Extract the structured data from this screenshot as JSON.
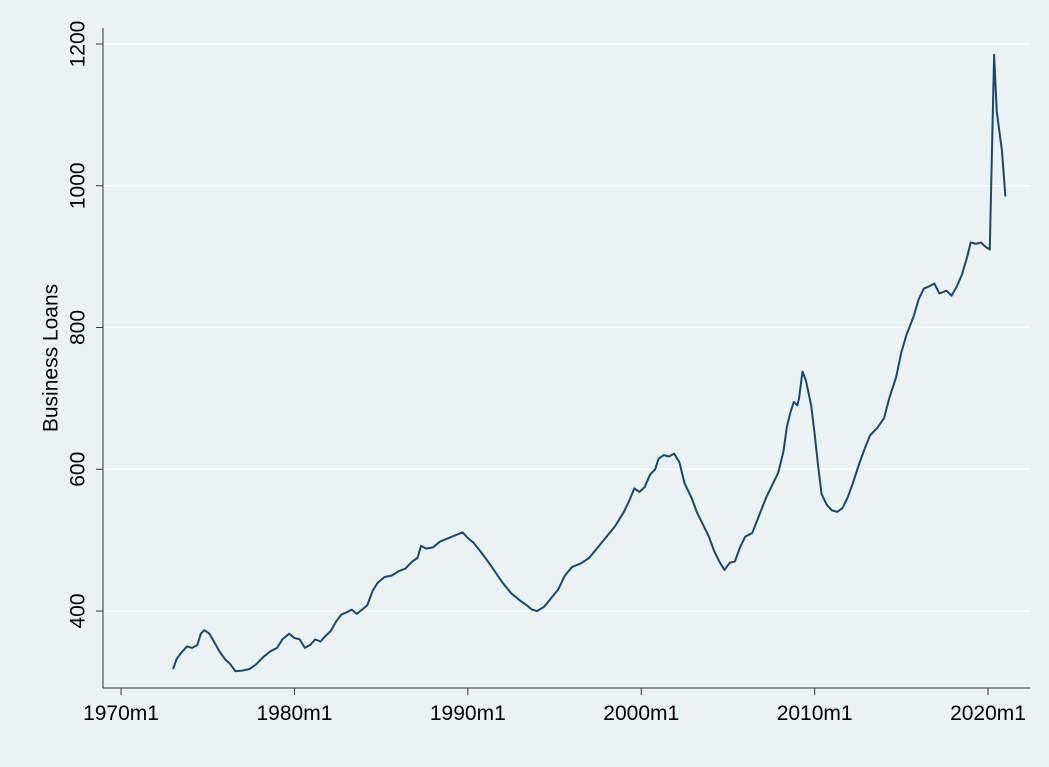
{
  "chart_data": {
    "type": "line",
    "ylabel": "Business Loans",
    "color": "#1a476f",
    "grid": true,
    "x": [
      1973.0,
      1973.2,
      1973.5,
      1973.8,
      1974.1,
      1974.4,
      1974.6,
      1974.8,
      1975.1,
      1975.4,
      1975.7,
      1976.0,
      1976.3,
      1976.6,
      1977.0,
      1977.4,
      1977.8,
      1978.2,
      1978.6,
      1979.0,
      1979.3,
      1979.7,
      1980.0,
      1980.3,
      1980.6,
      1980.9,
      1981.2,
      1981.5,
      1981.8,
      1982.1,
      1982.4,
      1982.7,
      1983.0,
      1983.3,
      1983.6,
      1983.9,
      1984.2,
      1984.5,
      1984.8,
      1985.2,
      1985.6,
      1986.0,
      1986.4,
      1986.8,
      1987.1,
      1987.3,
      1987.6,
      1988.0,
      1988.4,
      1988.8,
      1989.1,
      1989.4,
      1989.7,
      1990.0,
      1990.3,
      1990.7,
      1991.1,
      1991.5,
      1992.0,
      1992.5,
      1993.0,
      1993.4,
      1993.7,
      1994.0,
      1994.4,
      1994.8,
      1995.2,
      1995.6,
      1996.0,
      1996.5,
      1997.0,
      1997.5,
      1998.0,
      1998.5,
      1999.0,
      1999.3,
      1999.6,
      1999.9,
      2000.2,
      2000.5,
      2000.8,
      2001.0,
      2001.3,
      2001.6,
      2001.9,
      2002.2,
      2002.5,
      2002.9,
      2003.2,
      2003.6,
      2003.9,
      2004.2,
      2004.5,
      2004.8,
      2005.1,
      2005.4,
      2005.7,
      2006.0,
      2006.4,
      2006.8,
      2007.2,
      2007.6,
      2007.9,
      2008.2,
      2008.4,
      2008.6,
      2008.8,
      2009.0,
      2009.1,
      2009.3,
      2009.5,
      2009.8,
      2010.0,
      2010.2,
      2010.4,
      2010.7,
      2011.0,
      2011.3,
      2011.6,
      2011.9,
      2012.2,
      2012.6,
      2012.9,
      2013.2,
      2013.6,
      2014.0,
      2014.3,
      2014.7,
      2015.0,
      2015.3,
      2015.7,
      2016.0,
      2016.3,
      2016.6,
      2016.9,
      2017.2,
      2017.6,
      2017.9,
      2018.2,
      2018.5,
      2018.8,
      2019.0,
      2019.3,
      2019.6,
      2019.8,
      2020.1,
      2020.35,
      2020.5,
      2020.8,
      2021.0
    ],
    "values": [
      318,
      332,
      342,
      350,
      348,
      352,
      368,
      373,
      368,
      355,
      342,
      332,
      325,
      315,
      316,
      318,
      325,
      335,
      343,
      348,
      360,
      368,
      362,
      360,
      348,
      352,
      360,
      357,
      365,
      372,
      385,
      395,
      398,
      402,
      396,
      402,
      408,
      428,
      440,
      448,
      450,
      456,
      460,
      470,
      475,
      492,
      488,
      490,
      498,
      502,
      505,
      508,
      511,
      503,
      497,
      485,
      472,
      458,
      440,
      425,
      415,
      408,
      402,
      400,
      406,
      418,
      430,
      450,
      462,
      467,
      475,
      490,
      505,
      520,
      540,
      555,
      573,
      568,
      575,
      592,
      600,
      615,
      620,
      618,
      622,
      610,
      580,
      560,
      540,
      520,
      505,
      485,
      470,
      458,
      468,
      470,
      490,
      505,
      510,
      535,
      560,
      580,
      595,
      625,
      660,
      680,
      695,
      690,
      700,
      738,
      725,
      690,
      650,
      605,
      565,
      550,
      542,
      540,
      545,
      560,
      580,
      610,
      630,
      648,
      658,
      672,
      700,
      730,
      765,
      790,
      815,
      840,
      855,
      858,
      862,
      848,
      852,
      845,
      858,
      875,
      900,
      920,
      918,
      920,
      915,
      910,
      1185,
      1105,
      1050,
      985
    ],
    "xlim": [
      1968.96,
      2022.42
    ],
    "ylim": [
      291.4,
      1222.6
    ],
    "xticks": [
      {
        "value": 1970,
        "label": "1970m1"
      },
      {
        "value": 1980,
        "label": "1980m1"
      },
      {
        "value": 1990,
        "label": "1990m1"
      },
      {
        "value": 2000,
        "label": "2000m1"
      },
      {
        "value": 2010,
        "label": "2010m1"
      },
      {
        "value": 2020,
        "label": "2020m1"
      }
    ],
    "yticks": [
      400,
      600,
      800,
      1000,
      1200
    ]
  }
}
